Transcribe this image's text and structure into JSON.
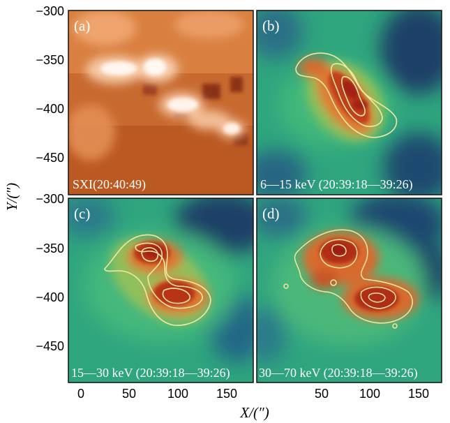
{
  "figure": {
    "panels": [
      {
        "id": "a",
        "label": "(a)",
        "caption": "SXI(20:40:49)",
        "kind": "sxi"
      },
      {
        "id": "b",
        "label": "(b)",
        "caption": "6—15 keV (20:39:18—39:26)",
        "kind": "hxr"
      },
      {
        "id": "c",
        "label": "(c)",
        "caption": "15—30 keV (20:39:18—39:26)",
        "kind": "hxr"
      },
      {
        "id": "d",
        "label": "(d)",
        "caption": "30—70 keV (20:39:18—39:26)",
        "kind": "hxr"
      }
    ],
    "x_axis": {
      "title": "X/(″)",
      "ticks": [
        "0",
        "50",
        "100",
        "150"
      ],
      "range": [
        -12,
        170
      ]
    },
    "y_axis": {
      "title": "Y/(″)",
      "ticks_top": [
        "−300",
        "−350",
        "−400",
        "−450"
      ],
      "ticks_bottom": [
        "−300",
        "−350",
        "−400",
        "−450"
      ],
      "range": [
        -480,
        -300
      ]
    },
    "colors": {
      "sxi_background": "#c86a30",
      "sxi_bright": "#fff4ec",
      "hxr_background": "#2fa57e",
      "hxr_dark": "#1b3f67",
      "hxr_core": "#a32318",
      "contour": "#f5e8a0"
    }
  }
}
